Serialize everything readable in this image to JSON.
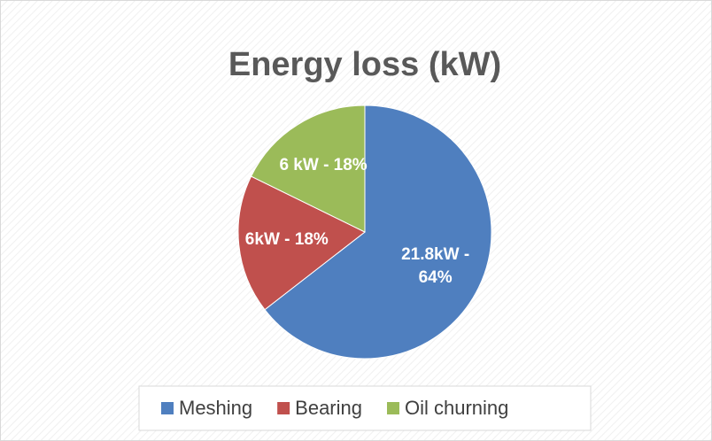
{
  "chart_data": {
    "type": "pie",
    "title": "Energy loss (kW)",
    "categories": [
      "Meshing",
      "Bearing",
      "Oil churning"
    ],
    "values": [
      21.8,
      6,
      6
    ],
    "value_labels": [
      "21.8kW - 64%",
      "6kW - 18%",
      "6 kW - 18%"
    ],
    "colors": [
      "#4f7fbf",
      "#c0504d",
      "#9bbb59"
    ],
    "legend": "bottom"
  }
}
